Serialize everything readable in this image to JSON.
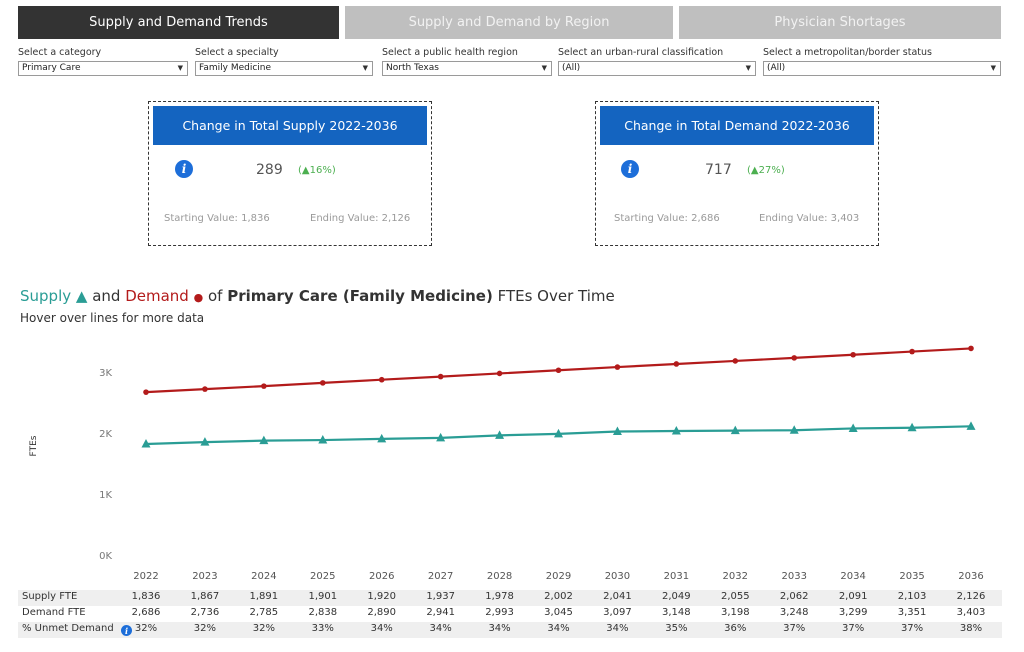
{
  "tabs": [
    {
      "label": "Supply and Demand Trends",
      "active": true
    },
    {
      "label": "Supply and Demand by Region",
      "active": false
    },
    {
      "label": "Physician Shortages",
      "active": false
    }
  ],
  "filters": [
    {
      "label": "Select a category",
      "value": "Primary Care"
    },
    {
      "label": "Select a specialty",
      "value": "Family Medicine"
    },
    {
      "label": "Select a public health region",
      "value": "North Texas"
    },
    {
      "label": "Select an urban-rural classification",
      "value": "(All)"
    },
    {
      "label": "Select a metropolitan/border status",
      "value": "(All)"
    }
  ],
  "supply_card": {
    "title": "Change in Total Supply 2022-2036",
    "value": "289",
    "change": "(▲16%)",
    "start": "Starting Value: 1,836",
    "end": "Ending Value: 2,126"
  },
  "demand_card": {
    "title": "Change in Total Demand 2022-2036",
    "value": "717",
    "change": "(▲27%)",
    "start": "Starting Value: 2,686",
    "end": "Ending Value: 3,403"
  },
  "chart_title": {
    "supply": "Supply",
    "tri": "▲",
    "and": " and ",
    "demand": "Demand",
    "dot": "●",
    "of": " of ",
    "bold": "Primary Care (Family Medicine)",
    "rest": " FTEs Over Time"
  },
  "subtitle": "Hover over lines for more data",
  "colors": {
    "supply": "#2a9d95",
    "demand": "#b31b1b",
    "active_tab": "#333333",
    "card_header": "#1464c0"
  },
  "chart_data": {
    "type": "line",
    "x": [
      2022,
      2023,
      2024,
      2025,
      2026,
      2027,
      2028,
      2029,
      2030,
      2031,
      2032,
      2033,
      2034,
      2035,
      2036
    ],
    "series": [
      {
        "name": "Supply",
        "values": [
          1836,
          1867,
          1891,
          1901,
          1920,
          1937,
          1978,
          2002,
          2041,
          2049,
          2055,
          2062,
          2091,
          2103,
          2126
        ]
      },
      {
        "name": "Demand",
        "values": [
          2686,
          2736,
          2785,
          2838,
          2890,
          2941,
          2993,
          3045,
          3097,
          3148,
          3198,
          3248,
          3299,
          3351,
          3403
        ]
      }
    ],
    "ylabel": "FTEs",
    "yticks": [
      "0K",
      "1K",
      "2K",
      "3K"
    ],
    "ylim": [
      0,
      3600
    ]
  },
  "table": {
    "rows": [
      {
        "label": "Supply FTE",
        "values": [
          "1,836",
          "1,867",
          "1,891",
          "1,901",
          "1,920",
          "1,937",
          "1,978",
          "2,002",
          "2,041",
          "2,049",
          "2,055",
          "2,062",
          "2,091",
          "2,103",
          "2,126"
        ]
      },
      {
        "label": "Demand FTE",
        "values": [
          "2,686",
          "2,736",
          "2,785",
          "2,838",
          "2,890",
          "2,941",
          "2,993",
          "3,045",
          "3,097",
          "3,148",
          "3,198",
          "3,248",
          "3,299",
          "3,351",
          "3,403"
        ]
      },
      {
        "label": "% Unmet Demand",
        "values": [
          "32%",
          "32%",
          "32%",
          "33%",
          "34%",
          "34%",
          "34%",
          "34%",
          "34%",
          "35%",
          "36%",
          "37%",
          "37%",
          "37%",
          "38%"
        ]
      }
    ]
  },
  "icons": {
    "info": "i"
  }
}
